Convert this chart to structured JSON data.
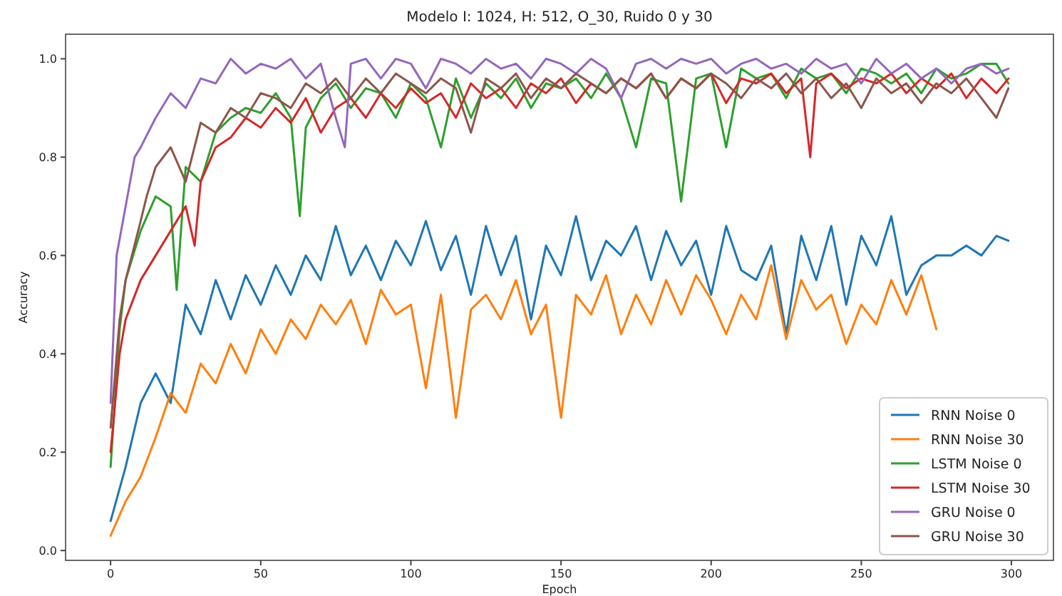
{
  "chart_data": {
    "type": "line",
    "title": "Modelo I: 1024, H: 512, O_30, Ruido 0 y 30",
    "xlabel": "Epoch",
    "ylabel": "Accuracy",
    "xlim": [
      -15,
      314
    ],
    "xticks": [
      0,
      50,
      100,
      150,
      200,
      250,
      300
    ],
    "ylim": [
      -0.02,
      1.05
    ],
    "yticks": [
      {
        "value": 0,
        "label": "0.0"
      },
      {
        "value": 0.2,
        "label": "0.2"
      },
      {
        "value": 0.4,
        "label": "0.4"
      },
      {
        "value": 0.6,
        "label": "0.6"
      },
      {
        "value": 0.8,
        "label": "0.8"
      },
      {
        "value": 1,
        "label": "1.0"
      }
    ],
    "legend": "bottom right",
    "grid": false,
    "marker": "none",
    "line_style": "solid",
    "series": [
      {
        "name": "RNN Noise 0",
        "color": "#1f77b4",
        "x": [
          0,
          5,
          10,
          15,
          20,
          25,
          30,
          35,
          40,
          45,
          50,
          55,
          60,
          65,
          70,
          75,
          80,
          85,
          90,
          95,
          100,
          105,
          110,
          115,
          120,
          125,
          130,
          135,
          140,
          145,
          150,
          155,
          160,
          165,
          170,
          175,
          180,
          185,
          190,
          195,
          200,
          205,
          210,
          215,
          220,
          225,
          230,
          235,
          240,
          245,
          250,
          255,
          260,
          265,
          270,
          275,
          280,
          285,
          290,
          295,
          299
        ],
        "values": [
          0.06,
          0.17,
          0.3,
          0.36,
          0.3,
          0.5,
          0.44,
          0.55,
          0.47,
          0.56,
          0.5,
          0.58,
          0.52,
          0.6,
          0.55,
          0.66,
          0.56,
          0.62,
          0.55,
          0.63,
          0.58,
          0.67,
          0.57,
          0.64,
          0.52,
          0.66,
          0.56,
          0.64,
          0.47,
          0.62,
          0.56,
          0.68,
          0.55,
          0.63,
          0.6,
          0.66,
          0.55,
          0.65,
          0.58,
          0.63,
          0.52,
          0.66,
          0.57,
          0.55,
          0.62,
          0.44,
          0.64,
          0.55,
          0.66,
          0.5,
          0.64,
          0.58,
          0.68,
          0.52,
          0.58,
          0.6,
          0.6,
          0.62,
          0.6,
          0.64,
          0.63
        ]
      },
      {
        "name": "RNN Noise 30",
        "color": "#ff7f0e",
        "x": [
          0,
          5,
          10,
          15,
          20,
          25,
          30,
          35,
          40,
          45,
          50,
          55,
          60,
          65,
          70,
          75,
          80,
          85,
          90,
          95,
          100,
          105,
          110,
          115,
          120,
          125,
          130,
          135,
          140,
          145,
          150,
          155,
          160,
          165,
          170,
          175,
          180,
          185,
          190,
          195,
          200,
          205,
          210,
          215,
          220,
          225,
          230,
          235,
          240,
          245,
          250,
          255,
          260,
          265,
          270,
          275
        ],
        "values": [
          0.03,
          0.1,
          0.15,
          0.23,
          0.32,
          0.28,
          0.38,
          0.34,
          0.42,
          0.36,
          0.45,
          0.4,
          0.47,
          0.43,
          0.5,
          0.46,
          0.51,
          0.42,
          0.53,
          0.48,
          0.5,
          0.33,
          0.52,
          0.27,
          0.49,
          0.52,
          0.47,
          0.55,
          0.44,
          0.5,
          0.27,
          0.52,
          0.48,
          0.56,
          0.44,
          0.52,
          0.46,
          0.55,
          0.48,
          0.56,
          0.51,
          0.44,
          0.52,
          0.47,
          0.58,
          0.43,
          0.55,
          0.49,
          0.52,
          0.42,
          0.5,
          0.46,
          0.55,
          0.48,
          0.56,
          0.45
        ]
      },
      {
        "name": "LSTM Noise 0",
        "color": "#2ca02c",
        "x": [
          0,
          3,
          5,
          10,
          15,
          20,
          22,
          25,
          30,
          35,
          40,
          45,
          50,
          55,
          60,
          63,
          65,
          70,
          75,
          80,
          85,
          90,
          95,
          100,
          105,
          110,
          115,
          120,
          125,
          130,
          135,
          140,
          145,
          150,
          155,
          160,
          165,
          170,
          175,
          180,
          185,
          190,
          195,
          200,
          205,
          210,
          215,
          220,
          225,
          230,
          235,
          240,
          245,
          250,
          255,
          260,
          265,
          270,
          275,
          280,
          285,
          290,
          295,
          299
        ],
        "values": [
          0.17,
          0.45,
          0.55,
          0.65,
          0.72,
          0.7,
          0.53,
          0.78,
          0.75,
          0.85,
          0.88,
          0.9,
          0.89,
          0.93,
          0.88,
          0.68,
          0.86,
          0.92,
          0.95,
          0.9,
          0.94,
          0.93,
          0.88,
          0.95,
          0.92,
          0.82,
          0.96,
          0.88,
          0.95,
          0.92,
          0.96,
          0.9,
          0.95,
          0.94,
          0.96,
          0.92,
          0.97,
          0.92,
          0.82,
          0.96,
          0.95,
          0.71,
          0.96,
          0.97,
          0.82,
          0.98,
          0.96,
          0.97,
          0.92,
          0.98,
          0.96,
          0.97,
          0.93,
          0.98,
          0.97,
          0.95,
          0.97,
          0.93,
          0.98,
          0.96,
          0.97,
          0.99,
          0.99,
          0.95
        ]
      },
      {
        "name": "LSTM Noise 30",
        "color": "#d62728",
        "x": [
          0,
          3,
          5,
          10,
          15,
          20,
          25,
          28,
          30,
          35,
          40,
          45,
          50,
          55,
          60,
          65,
          70,
          75,
          80,
          85,
          90,
          95,
          100,
          105,
          110,
          115,
          120,
          125,
          130,
          135,
          140,
          145,
          150,
          155,
          160,
          165,
          170,
          175,
          180,
          185,
          190,
          195,
          200,
          205,
          210,
          215,
          220,
          225,
          230,
          233,
          235,
          240,
          245,
          250,
          255,
          260,
          265,
          270,
          275,
          280,
          285,
          290,
          295,
          299
        ],
        "values": [
          0.2,
          0.4,
          0.47,
          0.55,
          0.6,
          0.65,
          0.7,
          0.62,
          0.75,
          0.82,
          0.84,
          0.88,
          0.86,
          0.9,
          0.87,
          0.92,
          0.85,
          0.9,
          0.92,
          0.88,
          0.93,
          0.9,
          0.94,
          0.91,
          0.93,
          0.88,
          0.95,
          0.92,
          0.94,
          0.9,
          0.95,
          0.93,
          0.96,
          0.91,
          0.95,
          0.93,
          0.96,
          0.94,
          0.97,
          0.92,
          0.96,
          0.94,
          0.97,
          0.91,
          0.96,
          0.95,
          0.97,
          0.93,
          0.96,
          0.8,
          0.95,
          0.97,
          0.94,
          0.96,
          0.95,
          0.97,
          0.93,
          0.96,
          0.94,
          0.97,
          0.92,
          0.96,
          0.93,
          0.96
        ]
      },
      {
        "name": "GRU Noise 0",
        "color": "#9467bd",
        "x": [
          0,
          2,
          5,
          8,
          10,
          15,
          20,
          25,
          30,
          35,
          40,
          45,
          50,
          55,
          60,
          65,
          70,
          75,
          78,
          80,
          85,
          90,
          95,
          100,
          105,
          110,
          115,
          120,
          125,
          130,
          135,
          140,
          145,
          150,
          155,
          160,
          165,
          170,
          175,
          180,
          185,
          190,
          195,
          200,
          205,
          210,
          215,
          220,
          225,
          230,
          235,
          240,
          245,
          250,
          255,
          260,
          265,
          270,
          275,
          280,
          285,
          290,
          295,
          299
        ],
        "values": [
          0.3,
          0.6,
          0.7,
          0.8,
          0.82,
          0.88,
          0.93,
          0.9,
          0.96,
          0.95,
          1.0,
          0.97,
          0.99,
          0.98,
          1.0,
          0.96,
          0.99,
          0.88,
          0.82,
          0.99,
          1.0,
          0.96,
          1.0,
          0.99,
          0.94,
          1.0,
          0.99,
          0.97,
          1.0,
          0.98,
          0.99,
          0.96,
          1.0,
          0.99,
          0.97,
          1.0,
          0.98,
          0.92,
          0.99,
          1.0,
          0.98,
          1.0,
          0.99,
          1.0,
          0.97,
          0.99,
          1.0,
          0.98,
          0.99,
          0.97,
          1.0,
          0.98,
          0.99,
          0.95,
          1.0,
          0.97,
          0.99,
          0.96,
          0.98,
          0.95,
          0.98,
          0.99,
          0.97,
          0.98
        ]
      },
      {
        "name": "GRU Noise 30",
        "color": "#8c564b",
        "x": [
          0,
          3,
          5,
          10,
          12,
          15,
          20,
          25,
          30,
          35,
          40,
          45,
          50,
          55,
          60,
          65,
          70,
          75,
          80,
          85,
          90,
          95,
          100,
          105,
          110,
          115,
          120,
          125,
          130,
          135,
          140,
          145,
          150,
          155,
          160,
          165,
          170,
          175,
          180,
          185,
          190,
          195,
          200,
          205,
          210,
          215,
          220,
          225,
          230,
          235,
          240,
          245,
          250,
          255,
          260,
          265,
          270,
          275,
          280,
          285,
          290,
          295,
          299
        ],
        "values": [
          0.25,
          0.47,
          0.55,
          0.67,
          0.72,
          0.78,
          0.82,
          0.75,
          0.87,
          0.85,
          0.9,
          0.88,
          0.93,
          0.92,
          0.9,
          0.95,
          0.93,
          0.96,
          0.92,
          0.96,
          0.93,
          0.97,
          0.95,
          0.93,
          0.96,
          0.94,
          0.85,
          0.96,
          0.94,
          0.97,
          0.92,
          0.96,
          0.94,
          0.97,
          0.95,
          0.93,
          0.96,
          0.94,
          0.97,
          0.92,
          0.96,
          0.94,
          0.97,
          0.95,
          0.92,
          0.96,
          0.94,
          0.97,
          0.93,
          0.96,
          0.92,
          0.95,
          0.9,
          0.96,
          0.93,
          0.95,
          0.91,
          0.95,
          0.93,
          0.96,
          0.92,
          0.88,
          0.94
        ]
      }
    ]
  }
}
